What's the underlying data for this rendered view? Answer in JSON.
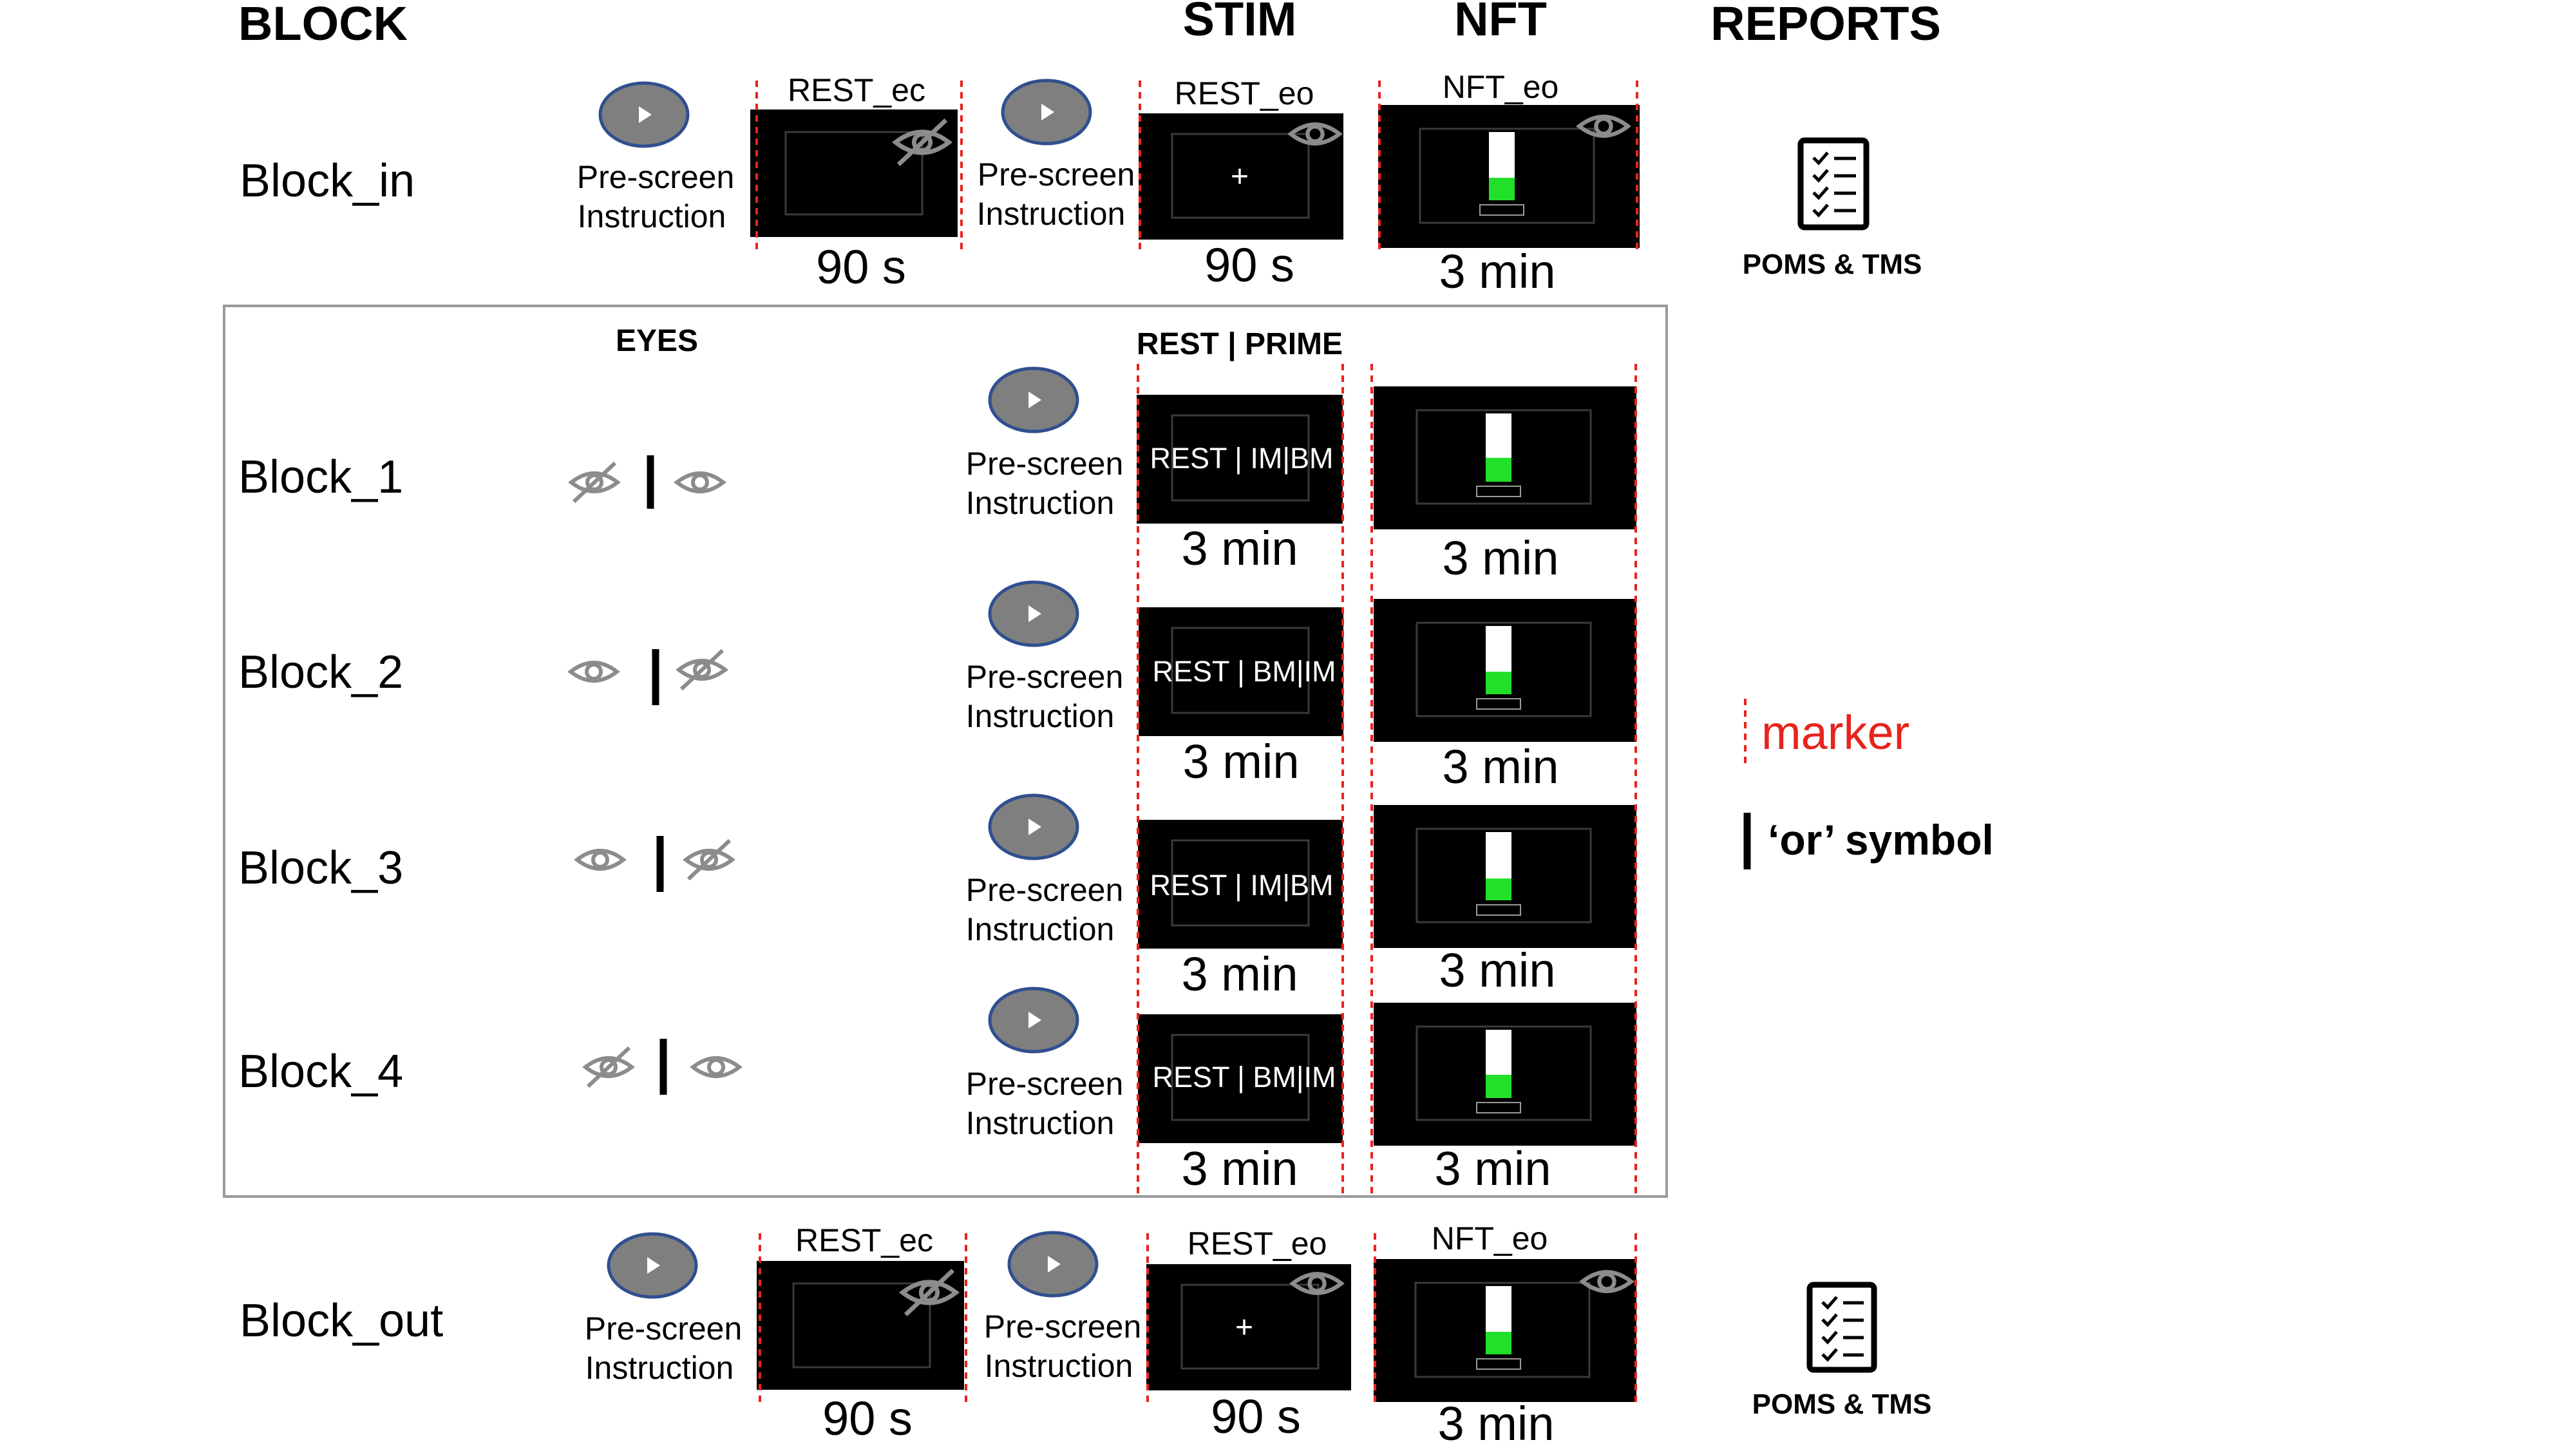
{
  "headers": {
    "block": "BLOCK",
    "stim": "STIM",
    "nft": "NFT",
    "reports": "REPORTS",
    "eyes": "EYES",
    "rest_prime": "REST | PRIME"
  },
  "video_caption": {
    "line1": "Pre-screen",
    "line2": "Instruction"
  },
  "block_in": {
    "name": "Block_in",
    "rest_ec_label": "REST_ec",
    "rest_ec_duration": "90 s",
    "rest_eo_label": "REST_eo",
    "rest_eo_cross": "+",
    "rest_eo_duration": "90 s",
    "nft_label": "NFT_eo",
    "nft_duration": "3 min",
    "nft_level": 0.33,
    "report": "POMS & TMS"
  },
  "inner_blocks": [
    {
      "name": "Block_1",
      "eyes": [
        "closed",
        "open"
      ],
      "prime_text": "REST | IM|BM",
      "stim_duration": "3 min",
      "nft_duration": "3 min",
      "nft_level": 0.35
    },
    {
      "name": "Block_2",
      "eyes": [
        "open",
        "closed"
      ],
      "prime_text": "REST | BM|IM",
      "stim_duration": "3 min",
      "nft_duration": "3 min",
      "nft_level": 0.33
    },
    {
      "name": "Block_3",
      "eyes": [
        "open",
        "closed"
      ],
      "prime_text": "REST | IM|BM",
      "stim_duration": "3 min",
      "nft_duration": "3 min",
      "nft_level": 0.32
    },
    {
      "name": "Block_4",
      "eyes": [
        "closed",
        "open"
      ],
      "prime_text": "REST | BM|IM",
      "stim_duration": "3 min",
      "nft_duration": "3 min",
      "nft_level": 0.34
    }
  ],
  "block_out": {
    "name": "Block_out",
    "rest_ec_label": "REST_ec",
    "rest_ec_duration": "90 s",
    "rest_eo_label": "REST_eo",
    "rest_eo_cross": "+",
    "rest_eo_duration": "90 s",
    "nft_label": "NFT_eo",
    "nft_duration": "3 min",
    "nft_level": 0.33,
    "report": "POMS & TMS"
  },
  "legend": {
    "marker_label": "marker",
    "or_label": "‘or’ symbol"
  },
  "colors": {
    "marker": "#e8231d",
    "bar_fill": "#22e02a",
    "play_button": "#7f7f7f",
    "play_outline": "#2f4f8f",
    "eye_icon": "#8c8c8c"
  },
  "icons": {
    "play": "play-icon",
    "eye_open": "eye-open-icon",
    "eye_closed": "eye-closed-icon",
    "report": "checklist-icon"
  }
}
